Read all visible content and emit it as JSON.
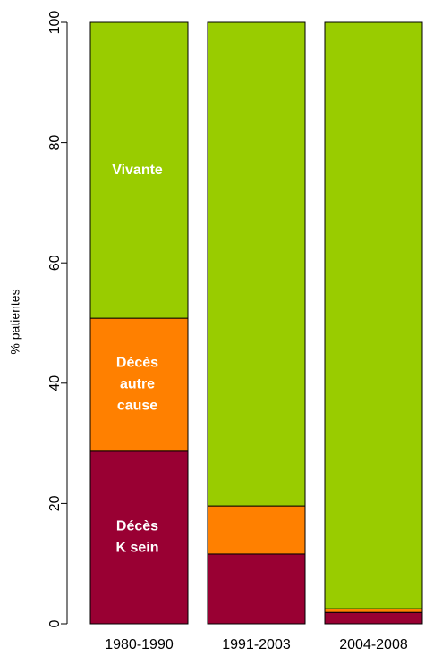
{
  "chart_data": {
    "type": "stacked-bar",
    "ylabel": "% patientes",
    "categories": [
      "1980-1990",
      "1991-2003",
      "2004-2008"
    ],
    "series": [
      {
        "name": [
          "Décès",
          "K sein"
        ],
        "color": "#990033",
        "values": [
          28.7,
          11.6,
          1.9
        ]
      },
      {
        "name": [
          "Décès",
          "autre",
          "cause"
        ],
        "color": "#ff8000",
        "values": [
          22.1,
          8.0,
          0.6
        ]
      },
      {
        "name": [
          "Vivante"
        ],
        "color": "#99cc00",
        "values": [
          49.2,
          80.4,
          97.5
        ]
      }
    ],
    "ylim": [
      0,
      100
    ],
    "yticks": [
      0,
      20,
      40,
      60,
      80,
      100
    ]
  }
}
